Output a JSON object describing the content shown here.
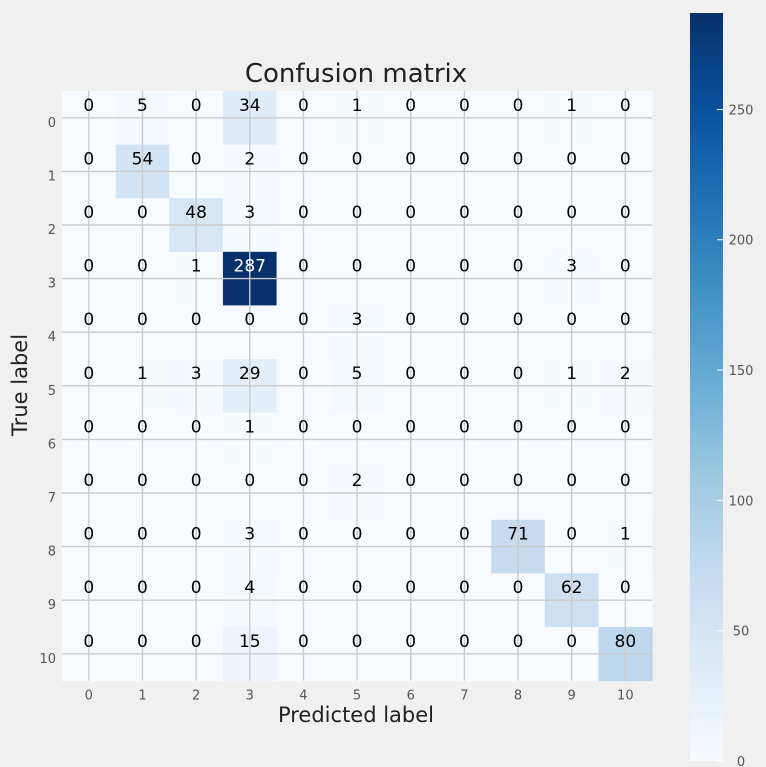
{
  "chart_data": {
    "type": "heatmap",
    "title": "Confusion matrix",
    "xlabel": "Predicted label",
    "ylabel": "True label",
    "x_ticks": [
      "0",
      "1",
      "2",
      "3",
      "4",
      "5",
      "6",
      "7",
      "8",
      "9",
      "10"
    ],
    "y_ticks": [
      "0",
      "1",
      "2",
      "3",
      "4",
      "5",
      "6",
      "7",
      "8",
      "9",
      "10"
    ],
    "matrix": [
      [
        0,
        5,
        0,
        34,
        0,
        1,
        0,
        0,
        0,
        1,
        0
      ],
      [
        0,
        54,
        0,
        2,
        0,
        0,
        0,
        0,
        0,
        0,
        0
      ],
      [
        0,
        0,
        48,
        3,
        0,
        0,
        0,
        0,
        0,
        0,
        0
      ],
      [
        0,
        0,
        1,
        287,
        0,
        0,
        0,
        0,
        0,
        3,
        0
      ],
      [
        0,
        0,
        0,
        0,
        0,
        3,
        0,
        0,
        0,
        0,
        0
      ],
      [
        0,
        1,
        3,
        29,
        0,
        5,
        0,
        0,
        0,
        1,
        2
      ],
      [
        0,
        0,
        0,
        1,
        0,
        0,
        0,
        0,
        0,
        0,
        0
      ],
      [
        0,
        0,
        0,
        0,
        0,
        2,
        0,
        0,
        0,
        0,
        0
      ],
      [
        0,
        0,
        0,
        3,
        0,
        0,
        0,
        0,
        71,
        0,
        1
      ],
      [
        0,
        0,
        0,
        4,
        0,
        0,
        0,
        0,
        0,
        62,
        0
      ],
      [
        0,
        0,
        0,
        15,
        0,
        0,
        0,
        0,
        0,
        0,
        80
      ]
    ],
    "colormap": "Blues",
    "colorbar": {
      "min": 0,
      "max": 287,
      "ticks": [
        "0",
        "50",
        "100",
        "150",
        "200",
        "250"
      ]
    },
    "grid": true
  }
}
